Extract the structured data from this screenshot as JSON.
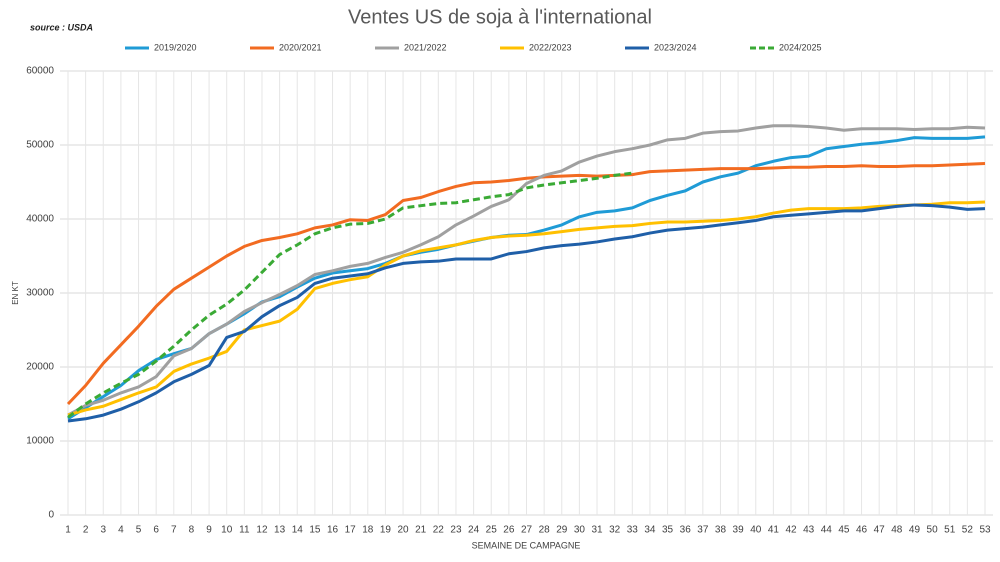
{
  "chart_data": {
    "type": "line",
    "title": "Ventes US de soja à l'international",
    "source": "source : USDA",
    "ylabel": "EN KT",
    "xlabel": "SEMAINE DE CAMPAGNE",
    "x": [
      1,
      2,
      3,
      4,
      5,
      6,
      7,
      8,
      9,
      10,
      11,
      12,
      13,
      14,
      15,
      16,
      17,
      18,
      19,
      20,
      21,
      22,
      23,
      24,
      25,
      26,
      27,
      28,
      29,
      30,
      31,
      32,
      33,
      34,
      35,
      36,
      37,
      38,
      39,
      40,
      41,
      42,
      43,
      44,
      45,
      46,
      47,
      48,
      49,
      50,
      51,
      52,
      53
    ],
    "xlim": [
      1,
      53
    ],
    "ylim": [
      0,
      60000
    ],
    "yticks": [
      0,
      10000,
      20000,
      30000,
      40000,
      50000,
      60000
    ],
    "grid": true,
    "legend": "top",
    "series": [
      {
        "name": "2019/2020",
        "color": "#1f9bd6",
        "values": [
          13000,
          14500,
          16000,
          17500,
          19500,
          21000,
          21800,
          22500,
          24500,
          25800,
          27200,
          28800,
          29500,
          30800,
          32000,
          32700,
          33000,
          33300,
          34000,
          35000,
          35500,
          35900,
          36500,
          37000,
          37500,
          37800,
          37900,
          38500,
          39200,
          40300,
          40900,
          41100,
          41500,
          42500,
          43200,
          43800,
          45000,
          45700,
          46200,
          47200,
          47800,
          48300,
          48500,
          49500,
          49800,
          50100,
          50300,
          50600,
          51000,
          50900,
          50900,
          50900,
          51100
        ]
      },
      {
        "name": "2020/2021",
        "color": "#f26b21",
        "values": [
          15000,
          17500,
          20500,
          23000,
          25500,
          28200,
          30500,
          32000,
          33500,
          35000,
          36300,
          37100,
          37500,
          38000,
          38800,
          39200,
          39900,
          39800,
          40600,
          42500,
          42900,
          43700,
          44400,
          44900,
          45000,
          45200,
          45500,
          45700,
          45800,
          45900,
          45800,
          45900,
          46000,
          46400,
          46500,
          46600,
          46700,
          46800,
          46800,
          46800,
          46900,
          47000,
          47000,
          47100,
          47100,
          47200,
          47100,
          47100,
          47200,
          47200,
          47300,
          47400,
          47500
        ]
      },
      {
        "name": "2021/2022",
        "color": "#a0a0a0",
        "values": [
          13500,
          14800,
          15500,
          16500,
          17300,
          18700,
          21500,
          22500,
          24500,
          25800,
          27500,
          28700,
          29800,
          31000,
          32500,
          33000,
          33600,
          34000,
          34800,
          35500,
          36500,
          37600,
          39200,
          40400,
          41700,
          42600,
          44800,
          45900,
          46500,
          47700,
          48500,
          49100,
          49500,
          50000,
          50700,
          50900,
          51600,
          51800,
          51900,
          52300,
          52600,
          52600,
          52500,
          52300,
          52000,
          52200,
          52200,
          52200,
          52100,
          52200,
          52200,
          52400,
          52300
        ]
      },
      {
        "name": "2022/2023",
        "color": "#ffc000",
        "values": [
          13500,
          14200,
          14700,
          15600,
          16500,
          17300,
          19400,
          20400,
          21200,
          22100,
          25000,
          25600,
          26200,
          27800,
          30600,
          31300,
          31800,
          32200,
          33800,
          35000,
          35700,
          36100,
          36500,
          37100,
          37500,
          37700,
          37800,
          38000,
          38300,
          38600,
          38800,
          39000,
          39100,
          39400,
          39600,
          39600,
          39700,
          39800,
          40000,
          40300,
          40800,
          41200,
          41400,
          41400,
          41400,
          41500,
          41700,
          41800,
          41900,
          42000,
          42200,
          42200,
          42300
        ]
      },
      {
        "name": "2023/2024",
        "color": "#1f5fa8",
        "values": [
          12700,
          13000,
          13500,
          14300,
          15300,
          16500,
          18000,
          19000,
          20200,
          24000,
          24800,
          26800,
          28300,
          29400,
          31300,
          32000,
          32300,
          32600,
          33400,
          34000,
          34200,
          34300,
          34600,
          34600,
          34600,
          35300,
          35600,
          36100,
          36400,
          36600,
          36900,
          37300,
          37600,
          38100,
          38500,
          38700,
          38900,
          39200,
          39500,
          39800,
          40300,
          40500,
          40700,
          40900,
          41100,
          41100,
          41400,
          41700,
          41900,
          41800,
          41600,
          41300,
          41400
        ]
      },
      {
        "name": "2024/2025",
        "color": "#3aaa35",
        "dashed": true,
        "values": [
          13200,
          15000,
          16500,
          17800,
          19000,
          20800,
          22800,
          25000,
          27000,
          28500,
          30400,
          32800,
          35200,
          36500,
          38000,
          38800,
          39300,
          39400,
          40000,
          41500,
          41800,
          42100,
          42200,
          42600,
          43000,
          43300,
          44200,
          44600,
          44900,
          45200,
          45500,
          45900,
          46200,
          null,
          null,
          null,
          null,
          null,
          null,
          null,
          null,
          null,
          null,
          null,
          null,
          null,
          null,
          null,
          null,
          null,
          null,
          null,
          null
        ]
      }
    ]
  }
}
